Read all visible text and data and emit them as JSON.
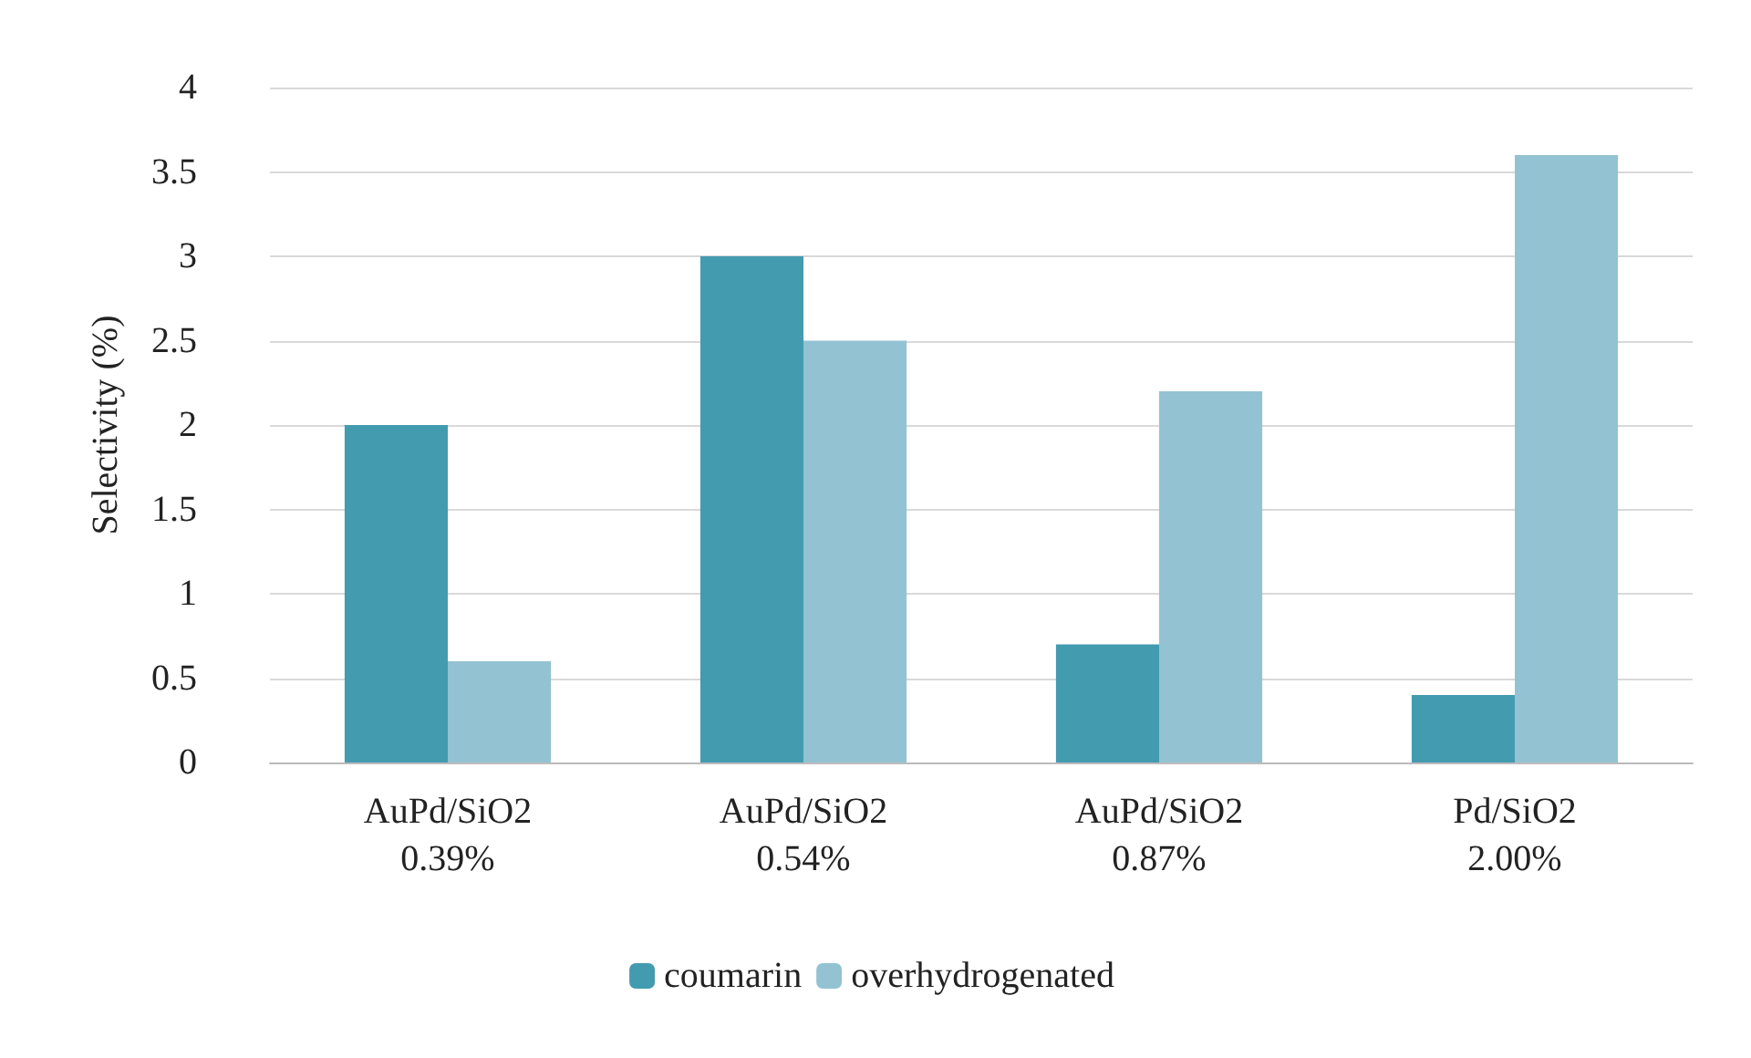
{
  "chart_data": {
    "type": "bar",
    "ylabel": "Selectivity (%)",
    "categories": [
      "AuPd/SiO2\n0.39%",
      "AuPd/SiO2\n0.54%",
      "AuPd/SiO2\n0.87%",
      "Pd/SiO2\n2.00%"
    ],
    "series": [
      {
        "name": "coumarin",
        "color": "#439bb0",
        "values": [
          2,
          3,
          0.7,
          0.4
        ]
      },
      {
        "name": "overhydrogenated",
        "color": "#93c3d3",
        "values": [
          0.6,
          2.5,
          2.2,
          3.6
        ]
      }
    ],
    "ylim": [
      0,
      4
    ],
    "yticks": [
      0,
      0.5,
      1,
      1.5,
      2,
      2.5,
      3,
      3.5,
      4
    ],
    "grid": "y",
    "legend": "bottom"
  }
}
